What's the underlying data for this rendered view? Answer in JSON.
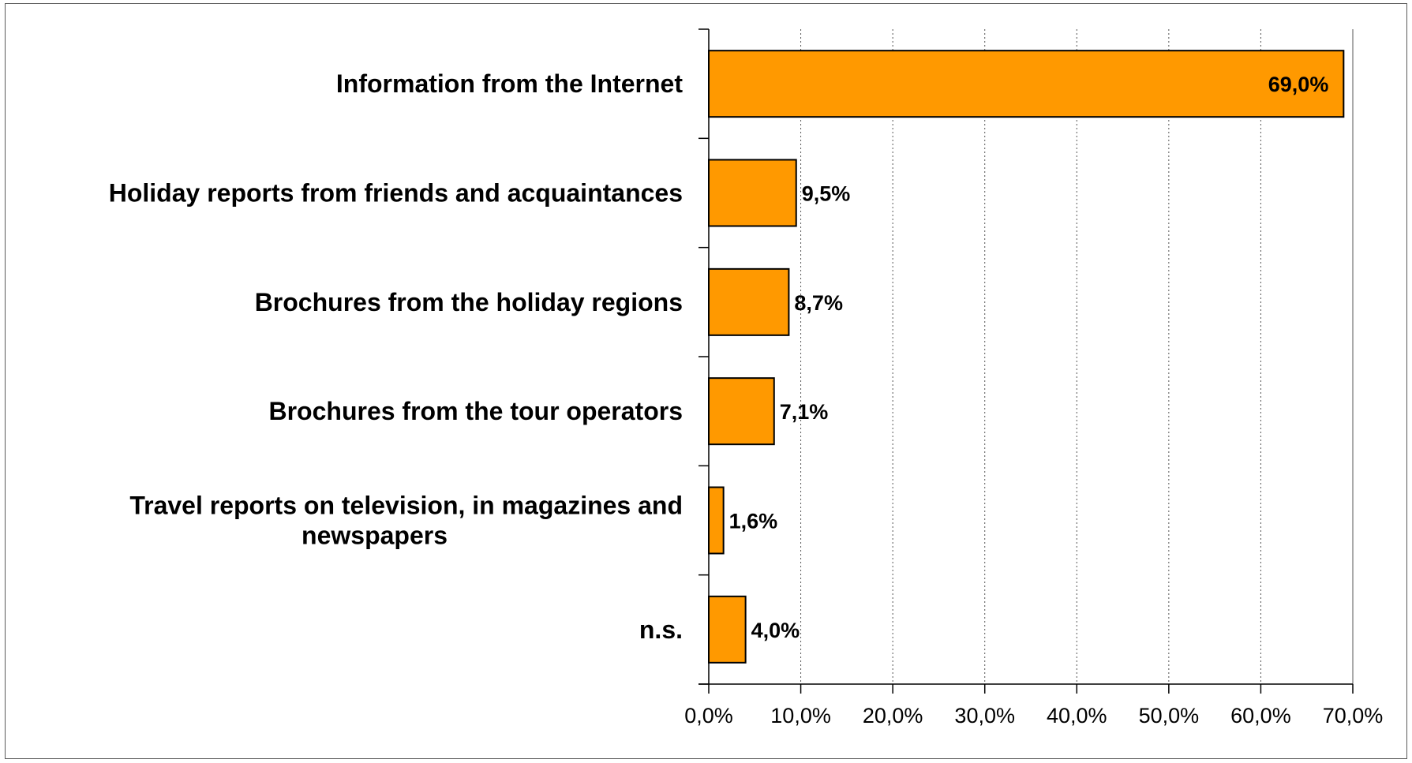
{
  "chart_data": {
    "type": "bar",
    "orientation": "horizontal",
    "title": "",
    "xlabel": "",
    "ylabel": "",
    "categories": [
      "Information from the Internet",
      "Holiday reports from friends and acquaintances",
      "Brochures from the holiday regions",
      "Brochures from the tour operators",
      "Travel reports on television, in magazines and newspapers",
      "n.s."
    ],
    "category_display_lines": [
      [
        "Information from the Internet"
      ],
      [
        "Holiday reports from friends and acquaintances"
      ],
      [
        "Brochures from the holiday regions"
      ],
      [
        "Brochures from the tour operators"
      ],
      [
        "Travel reports on television, in magazines and",
        "newspapers"
      ],
      [
        "n.s."
      ]
    ],
    "values": [
      69.0,
      9.5,
      8.7,
      7.1,
      1.6,
      4.0
    ],
    "value_labels": [
      "69,0%",
      "9,5%",
      "8,7%",
      "7,1%",
      "1,6%",
      "4,0%"
    ],
    "xlim": [
      0,
      70
    ],
    "x_ticks": [
      0,
      10,
      20,
      30,
      40,
      50,
      60,
      70
    ],
    "x_tick_labels": [
      "0,0%",
      "10,0%",
      "20,0%",
      "30,0%",
      "40,0%",
      "50,0%",
      "60,0%",
      "70,0%"
    ],
    "grid": "vertical dotted",
    "legend": "none",
    "bar_color": "#FF9900",
    "bar_edge_color": "#000000"
  }
}
